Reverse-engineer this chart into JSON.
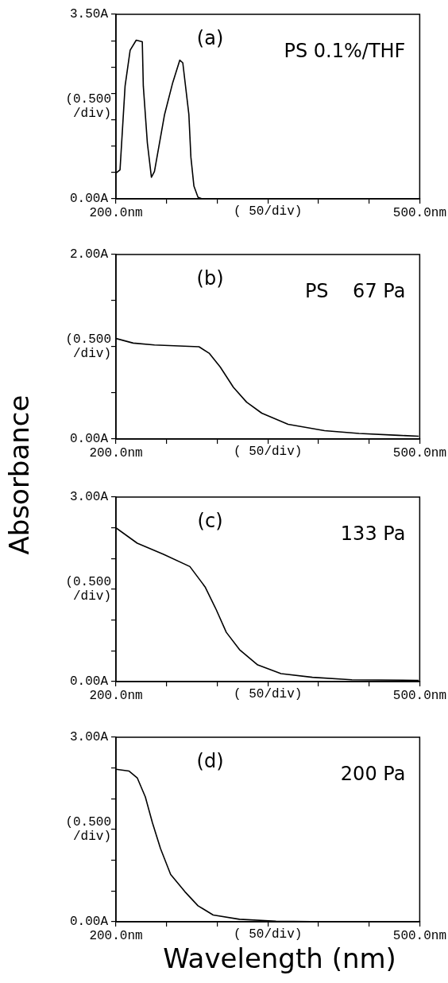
{
  "chart_data": [
    {
      "type": "line",
      "annotations": [
        "(a)",
        "PS 0.1%/THF"
      ],
      "xlabel": "( 50/div)",
      "ylabel": "(0.500 /div)",
      "x": [
        200,
        204,
        209,
        214,
        220,
        226,
        227,
        231,
        235,
        238,
        248,
        256,
        263,
        266,
        272,
        274,
        277,
        281,
        285
      ],
      "values": [
        0.49,
        0.55,
        2.14,
        2.82,
        3.01,
        2.98,
        2.14,
        1.06,
        0.41,
        0.52,
        1.6,
        2.2,
        2.63,
        2.58,
        1.6,
        0.79,
        0.24,
        0.03,
        0
      ],
      "color": "#000000",
      "xlim": [
        200,
        500
      ],
      "ylim": [
        0,
        3.5
      ],
      "xticks": [
        {
          "value": 200,
          "label": "200.0nm"
        },
        {
          "value": 250,
          "label": null
        },
        {
          "value": 300,
          "label": null
        },
        {
          "value": 350,
          "label": null
        },
        {
          "value": 400,
          "label": null
        },
        {
          "value": 450,
          "label": null
        },
        {
          "value": 500,
          "label": "500.0nm"
        }
      ],
      "yticks": [
        {
          "value": 0,
          "label": "0.00A"
        },
        {
          "value": 0.5,
          "label": null
        },
        {
          "value": 1,
          "label": null
        },
        {
          "value": 1.5,
          "label": null
        },
        {
          "value": 2,
          "label": null
        },
        {
          "value": 2.5,
          "label": null
        },
        {
          "value": 3,
          "label": null
        },
        {
          "value": 3.5,
          "label": "3.50A"
        }
      ],
      "grid": false,
      "legend": false,
      "marker": "none"
    },
    {
      "type": "line",
      "annotations": [
        "(b)",
        "PS    67 Pa",
        "Absorbance"
      ],
      "xlabel": "( 50/div)",
      "ylabel": "(0.500 /div)",
      "x": [
        200,
        217,
        238,
        282,
        292,
        303,
        316,
        329,
        344,
        370,
        406,
        440,
        479,
        499
      ],
      "values": [
        1.09,
        1.04,
        1.02,
        1.0,
        0.93,
        0.78,
        0.56,
        0.4,
        0.28,
        0.16,
        0.09,
        0.06,
        0.04,
        0.03
      ],
      "color": "#000000",
      "xlim": [
        200,
        500
      ],
      "ylim": [
        0,
        2
      ],
      "xticks": [
        {
          "value": 200,
          "label": "200.0nm"
        },
        {
          "value": 250,
          "label": null
        },
        {
          "value": 300,
          "label": null
        },
        {
          "value": 350,
          "label": null
        },
        {
          "value": 400,
          "label": null
        },
        {
          "value": 450,
          "label": null
        },
        {
          "value": 500,
          "label": "500.0nm"
        }
      ],
      "yticks": [
        {
          "value": 0,
          "label": "0.00A"
        },
        {
          "value": 0.5,
          "label": null
        },
        {
          "value": 1,
          "label": null
        },
        {
          "value": 1.5,
          "label": null
        },
        {
          "value": 2,
          "label": "2.00A"
        }
      ],
      "grid": false,
      "legend": false,
      "marker": "none"
    },
    {
      "type": "line",
      "annotations": [
        "(c)",
        "133 Pa"
      ],
      "xlabel": "( 50/div)",
      "ylabel": "(0.500 /div)",
      "x": [
        200,
        221,
        247,
        273,
        288,
        299,
        309,
        322,
        340,
        363,
        394,
        433,
        499
      ],
      "values": [
        2.5,
        2.25,
        2.07,
        1.87,
        1.54,
        1.17,
        0.8,
        0.52,
        0.27,
        0.13,
        0.07,
        0.03,
        0.02
      ],
      "color": "#000000",
      "xlim": [
        200,
        500
      ],
      "ylim": [
        0,
        3
      ],
      "xticks": [
        {
          "value": 200,
          "label": "200.0nm"
        },
        {
          "value": 250,
          "label": null
        },
        {
          "value": 300,
          "label": null
        },
        {
          "value": 350,
          "label": null
        },
        {
          "value": 400,
          "label": null
        },
        {
          "value": 450,
          "label": null
        },
        {
          "value": 500,
          "label": "500.0nm"
        }
      ],
      "yticks": [
        {
          "value": 0,
          "label": "0.00A"
        },
        {
          "value": 0.5,
          "label": null
        },
        {
          "value": 1,
          "label": null
        },
        {
          "value": 1.5,
          "label": null
        },
        {
          "value": 2,
          "label": null
        },
        {
          "value": 2.5,
          "label": null
        },
        {
          "value": 3,
          "label": "3.00A"
        }
      ],
      "grid": false,
      "legend": false,
      "marker": "none"
    },
    {
      "type": "line",
      "annotations": [
        "(d)",
        "200 Pa",
        "Wavelength (nm)"
      ],
      "xlabel": "( 50/div)",
      "ylabel": "(0.500 /div)",
      "x": [
        200,
        213,
        221,
        229,
        236,
        244,
        254,
        268,
        281,
        296,
        322,
        358,
        410
      ],
      "values": [
        2.48,
        2.45,
        2.34,
        2.03,
        1.61,
        1.19,
        0.77,
        0.49,
        0.26,
        0.11,
        0.04,
        0.01,
        0
      ],
      "color": "#000000",
      "xlim": [
        200,
        500
      ],
      "ylim": [
        0,
        3
      ],
      "xticks": [
        {
          "value": 200,
          "label": "200.0nm"
        },
        {
          "value": 250,
          "label": null
        },
        {
          "value": 300,
          "label": null
        },
        {
          "value": 350,
          "label": null
        },
        {
          "value": 400,
          "label": null
        },
        {
          "value": 450,
          "label": null
        },
        {
          "value": 500,
          "label": "500.0nm"
        }
      ],
      "yticks": [
        {
          "value": 0,
          "label": "0.00A"
        },
        {
          "value": 0.5,
          "label": null
        },
        {
          "value": 1,
          "label": null
        },
        {
          "value": 1.5,
          "label": null
        },
        {
          "value": 2,
          "label": null
        },
        {
          "value": 2.5,
          "label": null
        },
        {
          "value": 3,
          "label": "3.00A"
        }
      ],
      "grid": false,
      "legend": false,
      "marker": "none"
    }
  ]
}
